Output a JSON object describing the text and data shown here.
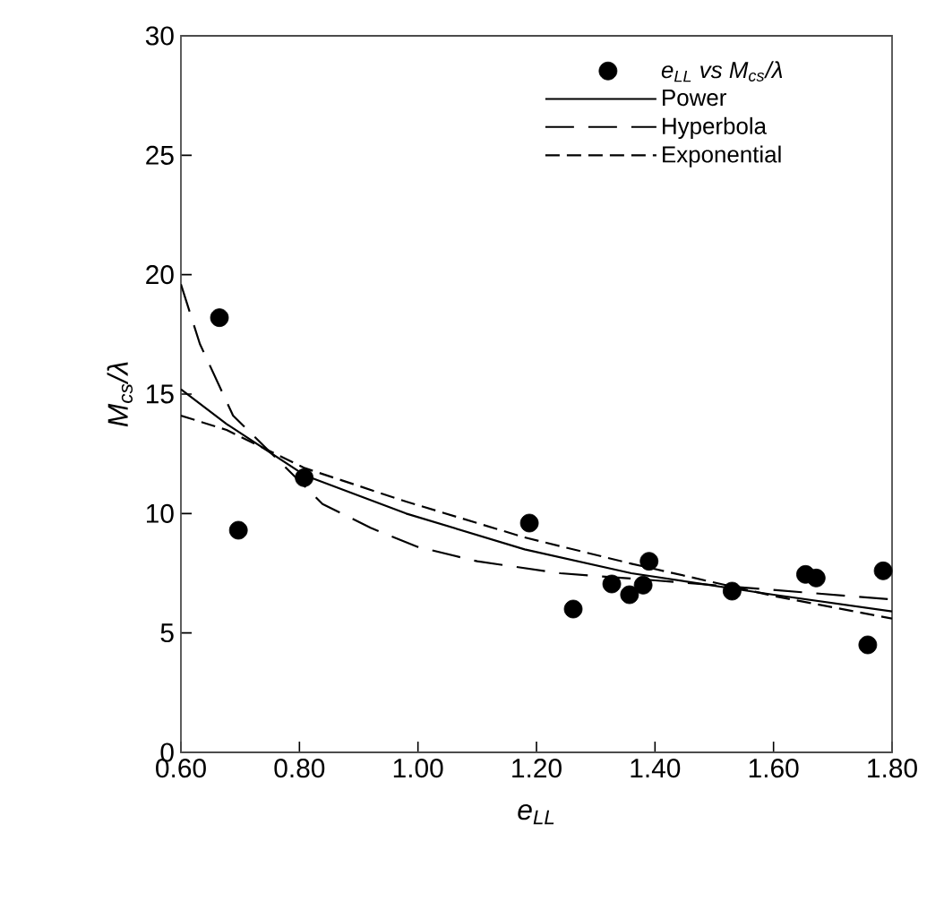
{
  "chart_data": {
    "type": "scatter",
    "xlabel": "e$_{LL}$",
    "ylabel": "M$_{cs}$/λ",
    "xlim": [
      0.6,
      1.8
    ],
    "ylim": [
      0,
      30
    ],
    "xticks": [
      {
        "value": 0.6,
        "label": "0.60"
      },
      {
        "value": 0.8,
        "label": "0.80"
      },
      {
        "value": 1.0,
        "label": "1.00"
      },
      {
        "value": 1.2,
        "label": "1.20"
      },
      {
        "value": 1.4,
        "label": "1.40"
      },
      {
        "value": 1.6,
        "label": "1.60"
      },
      {
        "value": 1.8,
        "label": "1.80"
      }
    ],
    "yticks": [
      0,
      5,
      10,
      15,
      20,
      25,
      30
    ],
    "legend": "top right",
    "grid": false,
    "series": [
      {
        "name": "e$_{LL}$ vs M$_{cs}$/λ",
        "marker": "circle",
        "color": "#000000",
        "x": [
          0.665,
          0.697,
          0.808,
          1.188,
          1.262,
          1.327,
          1.357,
          1.38,
          1.39,
          1.53,
          1.654,
          1.672,
          1.759,
          1.785
        ],
        "values": [
          18.2,
          9.3,
          11.5,
          9.6,
          6.0,
          7.05,
          6.6,
          7.0,
          8.0,
          6.75,
          7.45,
          7.3,
          4.5,
          7.6
        ]
      },
      {
        "name": "Power",
        "type": "line",
        "line_style": "solid",
        "marker": "none",
        "color": "#000000",
        "x": [
          0.6,
          0.677,
          0.809,
          0.98,
          1.18,
          1.36,
          1.6,
          1.8
        ],
        "values": [
          15.2,
          13.75,
          11.6,
          10.0,
          8.5,
          7.5,
          6.6,
          5.9
        ]
      },
      {
        "name": "Hyperbola",
        "type": "line",
        "line_style": "long dashed",
        "marker": "none",
        "color": "#000000",
        "x": [
          0.6,
          0.632,
          0.688,
          0.839,
          0.92,
          1.0,
          1.1,
          1.24,
          1.4,
          1.6,
          1.8
        ],
        "values": [
          19.6,
          17.1,
          14.1,
          10.4,
          9.4,
          8.6,
          8.0,
          7.5,
          7.2,
          6.8,
          6.4
        ]
      },
      {
        "name": "Exponential",
        "type": "line",
        "line_style": "dashed",
        "marker": "none",
        "color": "#000000",
        "x": [
          0.6,
          0.677,
          0.809,
          0.98,
          1.18,
          1.36,
          1.6,
          1.8
        ],
        "values": [
          14.1,
          13.5,
          11.9,
          10.5,
          9.0,
          7.9,
          6.55,
          5.6
        ]
      }
    ]
  }
}
